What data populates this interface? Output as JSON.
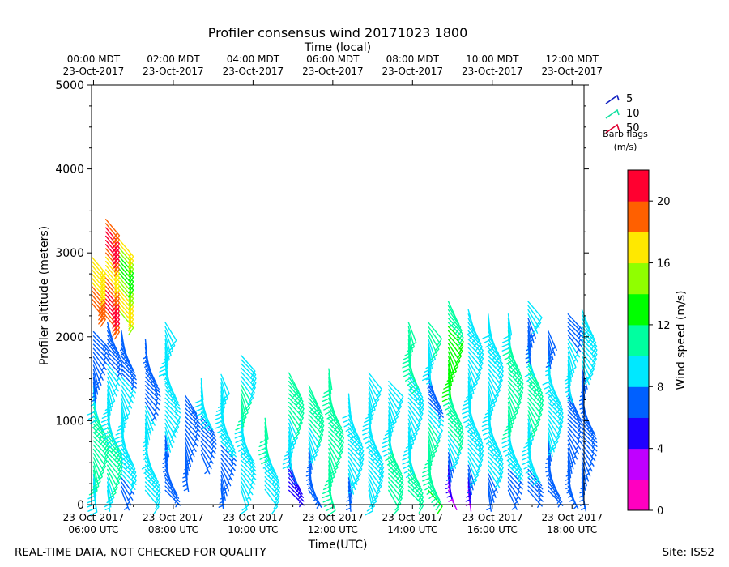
{
  "chart_data": {
    "type": "barb-plot",
    "title": "Profiler consensus wind 20171023 1800",
    "top_axis_label": "Time (local)",
    "xlabel": "Time(UTC)",
    "ylabel": "Profiler altitude (meters)",
    "ylim": [
      0,
      5000
    ],
    "y_ticks": [
      0,
      1000,
      2000,
      3000,
      4000,
      5000
    ],
    "x_range_hours_utc": [
      5.95,
      18.3
    ],
    "x_ticks_bottom": [
      {
        "hour": 6,
        "date": "23-Oct-2017",
        "time": "06:00 UTC"
      },
      {
        "hour": 8,
        "date": "23-Oct-2017",
        "time": "08:00 UTC"
      },
      {
        "hour": 10,
        "date": "23-Oct-2017",
        "time": "10:00 UTC"
      },
      {
        "hour": 12,
        "date": "23-Oct-2017",
        "time": "12:00 UTC"
      },
      {
        "hour": 14,
        "date": "23-Oct-2017",
        "time": "14:00 UTC"
      },
      {
        "hour": 16,
        "date": "23-Oct-2017",
        "time": "16:00 UTC"
      },
      {
        "hour": 18,
        "date": "23-Oct-2017",
        "time": "18:00 UTC"
      }
    ],
    "x_ticks_top": [
      {
        "hour": 6,
        "time": "00:00 MDT",
        "date": "23-Oct-2017"
      },
      {
        "hour": 8,
        "time": "02:00 MDT",
        "date": "23-Oct-2017"
      },
      {
        "hour": 10,
        "time": "04:00 MDT",
        "date": "23-Oct-2017"
      },
      {
        "hour": 12,
        "time": "06:00 MDT",
        "date": "23-Oct-2017"
      },
      {
        "hour": 14,
        "time": "08:00 MDT",
        "date": "23-Oct-2017"
      },
      {
        "hour": 16,
        "time": "10:00 MDT",
        "date": "23-Oct-2017"
      },
      {
        "hour": 18,
        "time": "12:00 MDT",
        "date": "23-Oct-2017"
      }
    ],
    "legend": {
      "title": "Barb flags",
      "units": "(m/s)",
      "entries": [
        {
          "label": "5",
          "color": "#1020c0"
        },
        {
          "label": "10",
          "color": "#10e0a0"
        },
        {
          "label": "50",
          "color": "#e00030"
        }
      ]
    },
    "colorbar": {
      "label": "Wind speed (m/s)",
      "range": [
        0,
        22
      ],
      "ticks": [
        0,
        4,
        8,
        12,
        16,
        20
      ],
      "colors": [
        "#ff00c0",
        "#c000ff",
        "#2000ff",
        "#0060ff",
        "#00e8ff",
        "#00ffa0",
        "#00ff00",
        "#90ff00",
        "#ffe800",
        "#ff6000",
        "#ff0030"
      ]
    },
    "profiles": [
      {
        "t": 6.0,
        "hmin": 160,
        "hmax": 2100,
        "speeds": [
          9,
          10,
          11,
          12,
          11,
          9,
          6,
          6,
          6
        ],
        "high": {
          "hmin": 2400,
          "hmax": 2950,
          "speed": 18
        }
      },
      {
        "t": 6.35,
        "hmin": 170,
        "hmax": 2200,
        "speeds": [
          8,
          11,
          11,
          10,
          9,
          9,
          8,
          6,
          6
        ],
        "high": {
          "hmin": 2250,
          "hmax": 3400,
          "speed": 19
        }
      },
      {
        "t": 6.7,
        "hmin": 170,
        "hmax": 2100,
        "speeds": [
          6,
          9,
          10,
          9,
          9,
          8,
          6,
          6
        ],
        "high": {
          "hmin": 2300,
          "hmax": 3150,
          "speed": 15
        }
      },
      {
        "t": 7.3,
        "hmin": 170,
        "hmax": 2000,
        "speeds": [
          9,
          9,
          9,
          8,
          8,
          6,
          6,
          6
        ]
      },
      {
        "t": 7.8,
        "hmin": 170,
        "hmax": 2200,
        "speeds": [
          6,
          6,
          8,
          9,
          8,
          9,
          9
        ]
      },
      {
        "t": 8.3,
        "hmin": 400,
        "hmax": 1300,
        "speeds": [
          6,
          6,
          6,
          7
        ]
      },
      {
        "t": 8.7,
        "hmin": 600,
        "hmax": 1500,
        "speeds": [
          6,
          6,
          9,
          9
        ]
      },
      {
        "t": 9.2,
        "hmin": 200,
        "hmax": 1550,
        "speeds": [
          6,
          7,
          9,
          9,
          9
        ]
      },
      {
        "t": 9.7,
        "hmin": 180,
        "hmax": 1800,
        "speeds": [
          9,
          8,
          9,
          10,
          10,
          9
        ]
      },
      {
        "t": 10.3,
        "hmin": 180,
        "hmax": 1050,
        "speeds": [
          9,
          9,
          10,
          10
        ]
      },
      {
        "t": 10.9,
        "hmin": 170,
        "hmax": 1600,
        "speeds": [
          5,
          6,
          9,
          10,
          11,
          12
        ]
      },
      {
        "t": 11.4,
        "hmin": 170,
        "hmax": 1450,
        "speeds": [
          6,
          6,
          9,
          11,
          12
        ]
      },
      {
        "t": 11.9,
        "hmin": 170,
        "hmax": 1650,
        "speeds": [
          11,
          10,
          10,
          11,
          10
        ]
      },
      {
        "t": 12.4,
        "hmin": 170,
        "hmax": 1350,
        "speeds": [
          7,
          9,
          10,
          9
        ]
      },
      {
        "t": 12.9,
        "hmin": 170,
        "hmax": 1600,
        "speeds": [
          9,
          9,
          10,
          9,
          9
        ]
      },
      {
        "t": 13.4,
        "hmin": 170,
        "hmax": 1500,
        "speeds": [
          11,
          11,
          10,
          9,
          9
        ]
      },
      {
        "t": 13.9,
        "hmin": 170,
        "hmax": 2200,
        "speeds": [
          10,
          10,
          9,
          9,
          11,
          12
        ]
      },
      {
        "t": 14.4,
        "hmin": 170,
        "hmax": 2200,
        "speeds": [
          12,
          11,
          10,
          6,
          9,
          11
        ]
      },
      {
        "t": 14.9,
        "hmin": 170,
        "hmax": 2450,
        "speeds": [
          3,
          6,
          10,
          11,
          12,
          12,
          12,
          11
        ]
      },
      {
        "t": 15.4,
        "hmin": 170,
        "hmax": 2350,
        "speeds": [
          3,
          9,
          9,
          9,
          9,
          9,
          10
        ]
      },
      {
        "t": 15.9,
        "hmin": 170,
        "hmax": 2300,
        "speeds": [
          6,
          9,
          9,
          9,
          9,
          9,
          9
        ]
      },
      {
        "t": 16.4,
        "hmin": 170,
        "hmax": 2300,
        "speeds": [
          6,
          9,
          10,
          10,
          11,
          9
        ]
      },
      {
        "t": 16.9,
        "hmin": 170,
        "hmax": 2450,
        "speeds": [
          6,
          9,
          9,
          12,
          11,
          6,
          10
        ]
      },
      {
        "t": 17.4,
        "hmin": 170,
        "hmax": 2100,
        "speeds": [
          6,
          6,
          9,
          9,
          9,
          6
        ]
      },
      {
        "t": 17.9,
        "hmin": 170,
        "hmax": 2300,
        "speeds": [
          6,
          6,
          6,
          8,
          9,
          6
        ]
      },
      {
        "t": 18.25,
        "hmin": 170,
        "hmax": 2350,
        "speeds": [
          6,
          6,
          6,
          9,
          9
        ]
      }
    ]
  },
  "footer": {
    "left": "REAL-TIME DATA, NOT CHECKED FOR QUALITY",
    "right": "Site: ISS2"
  }
}
